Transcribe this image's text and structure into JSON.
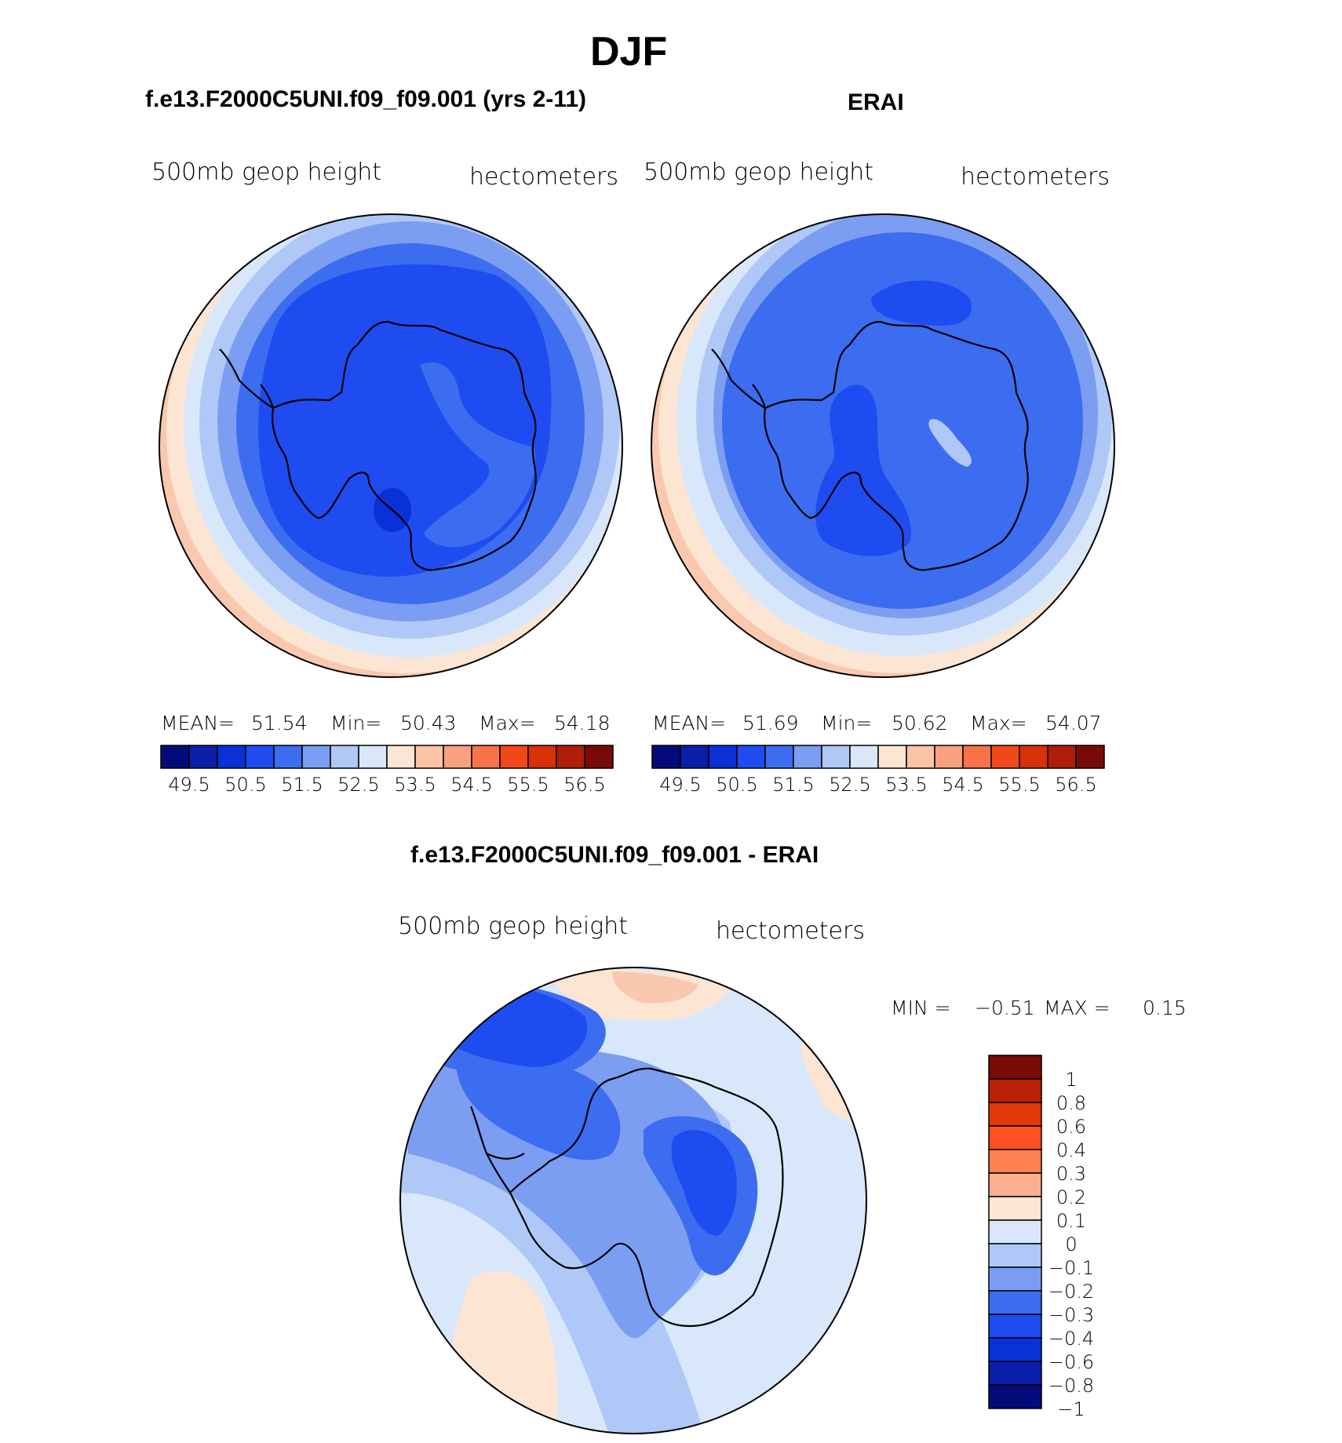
{
  "figure_title": "DJF",
  "panels": [
    {
      "case_title": "f.e13.F2000C5UNI.f09_f09.001 (yrs 2-11)",
      "left_label": "500mb  geop  height",
      "right_label": "hectometers",
      "stats": {
        "mean_label": "MEAN=",
        "mean": "51.54",
        "min_label": "Min=",
        "min": "50.43",
        "max_label": "Max=",
        "max": "54.18"
      }
    },
    {
      "case_title": "ERAI",
      "left_label": "500mb  geop  height",
      "right_label": "hectometers",
      "stats": {
        "mean_label": "MEAN=",
        "mean": "51.69",
        "min_label": "Min=",
        "min": "50.62",
        "max_label": "Max=",
        "max": "54.07"
      }
    }
  ],
  "diff_panel": {
    "title": "f.e13.F2000C5UNI.f09_f09.001 - ERAI",
    "left_label": "500mb  geop  height",
    "right_label": "hectometers",
    "minmax": {
      "min_label": "MIN =",
      "min": "−0.51",
      "max_label": "MAX =",
      "max": "0.15"
    }
  },
  "colors": {
    "abs_bar": [
      "#050a7a",
      "#0a1ea8",
      "#0a30d8",
      "#1e4cf0",
      "#3c6cf0",
      "#7b9ef2",
      "#b0c8f8",
      "#d8e8fa",
      "#fde5d4",
      "#fbc4a6",
      "#f8a080",
      "#f87448",
      "#f04818",
      "#d83008",
      "#b01e08",
      "#780a08"
    ],
    "diff_bar": [
      "#780a08",
      "#b82008",
      "#e03808",
      "#ff5020",
      "#ff8050",
      "#fcaf8e",
      "#fde6d4",
      "#d8e8fa",
      "#b0c8f8",
      "#7b9ef2",
      "#3c6cf0",
      "#1e4cf0",
      "#0a30d8",
      "#0a1ea8",
      "#050a7a"
    ]
  },
  "chart_data": [
    {
      "type": "heatmap",
      "title": "f.e13.F2000C5UNI.f09_f09.001 (yrs 2-11)",
      "variable": "500mb geop height",
      "units": "hectometers",
      "projection": "south polar stereographic",
      "mean": 51.54,
      "min": 50.43,
      "max": 54.18,
      "contour_levels": [
        49.5,
        50,
        50.5,
        51,
        51.5,
        52,
        52.5,
        53,
        53.5,
        54,
        54.5,
        55,
        55.5,
        56,
        56.5
      ],
      "colorbar_ticks": [
        "49.5",
        "50.5",
        "51.5",
        "52.5",
        "53.5",
        "54.5",
        "55.5",
        "56.5"
      ]
    },
    {
      "type": "heatmap",
      "title": "ERAI",
      "variable": "500mb geop height",
      "units": "hectometers",
      "projection": "south polar stereographic",
      "mean": 51.69,
      "min": 50.62,
      "max": 54.07,
      "contour_levels": [
        49.5,
        50,
        50.5,
        51,
        51.5,
        52,
        52.5,
        53,
        53.5,
        54,
        54.5,
        55,
        55.5,
        56,
        56.5
      ],
      "colorbar_ticks": [
        "49.5",
        "50.5",
        "51.5",
        "52.5",
        "53.5",
        "54.5",
        "55.5",
        "56.5"
      ]
    },
    {
      "type": "heatmap",
      "title": "f.e13.F2000C5UNI.f09_f09.001 - ERAI",
      "variable": "500mb geop height",
      "units": "hectometers",
      "projection": "south polar stereographic",
      "min": -0.51,
      "max": 0.15,
      "colorbar_ticks": [
        "1",
        "0.8",
        "0.6",
        "0.4",
        "0.3",
        "0.2",
        "0.1",
        "0",
        "−0.1",
        "−0.2",
        "−0.3",
        "−0.4",
        "−0.6",
        "−0.8",
        "−1"
      ]
    }
  ]
}
